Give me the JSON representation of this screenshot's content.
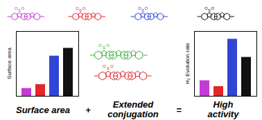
{
  "top_structures": [
    {
      "color": "#c23bd4",
      "atoms": [
        "O",
        "S",
        "O"
      ]
    },
    {
      "color": "#e3262a",
      "atoms": [
        "O",
        "S",
        "O"
      ]
    },
    {
      "color": "#2f45d6",
      "atoms": [
        "O",
        "S",
        "O"
      ]
    },
    {
      "color": "#111111",
      "atoms": [
        "O",
        "S",
        "O"
      ]
    }
  ],
  "middle_structures": [
    {
      "color": "#3aa83a",
      "atoms": [
        "O",
        "S",
        "O"
      ]
    },
    {
      "color": "#e3262a",
      "atoms": [
        "O",
        "S",
        "O"
      ]
    }
  ],
  "chart_data": [
    {
      "type": "bar",
      "y_label": "Surface area",
      "values": [
        12,
        18,
        62,
        74
      ],
      "colors": [
        "#c23bd4",
        "#e3262a",
        "#2f45d6",
        "#111111"
      ],
      "ylim": [
        0,
        100
      ],
      "tick_labels": false
    },
    {
      "type": "bar",
      "y_label": "H₂ Evolution rate",
      "values": [
        24,
        15,
        88,
        60
      ],
      "colors": [
        "#c23bd4",
        "#e3262a",
        "#2f45d6",
        "#111111"
      ],
      "ylim": [
        0,
        100
      ],
      "tick_labels": false
    }
  ],
  "equation": [
    [
      "Surface area"
    ],
    [
      "+"
    ],
    [
      "Extended",
      "conjugation"
    ],
    [
      "="
    ],
    [
      "High",
      "activity"
    ]
  ]
}
